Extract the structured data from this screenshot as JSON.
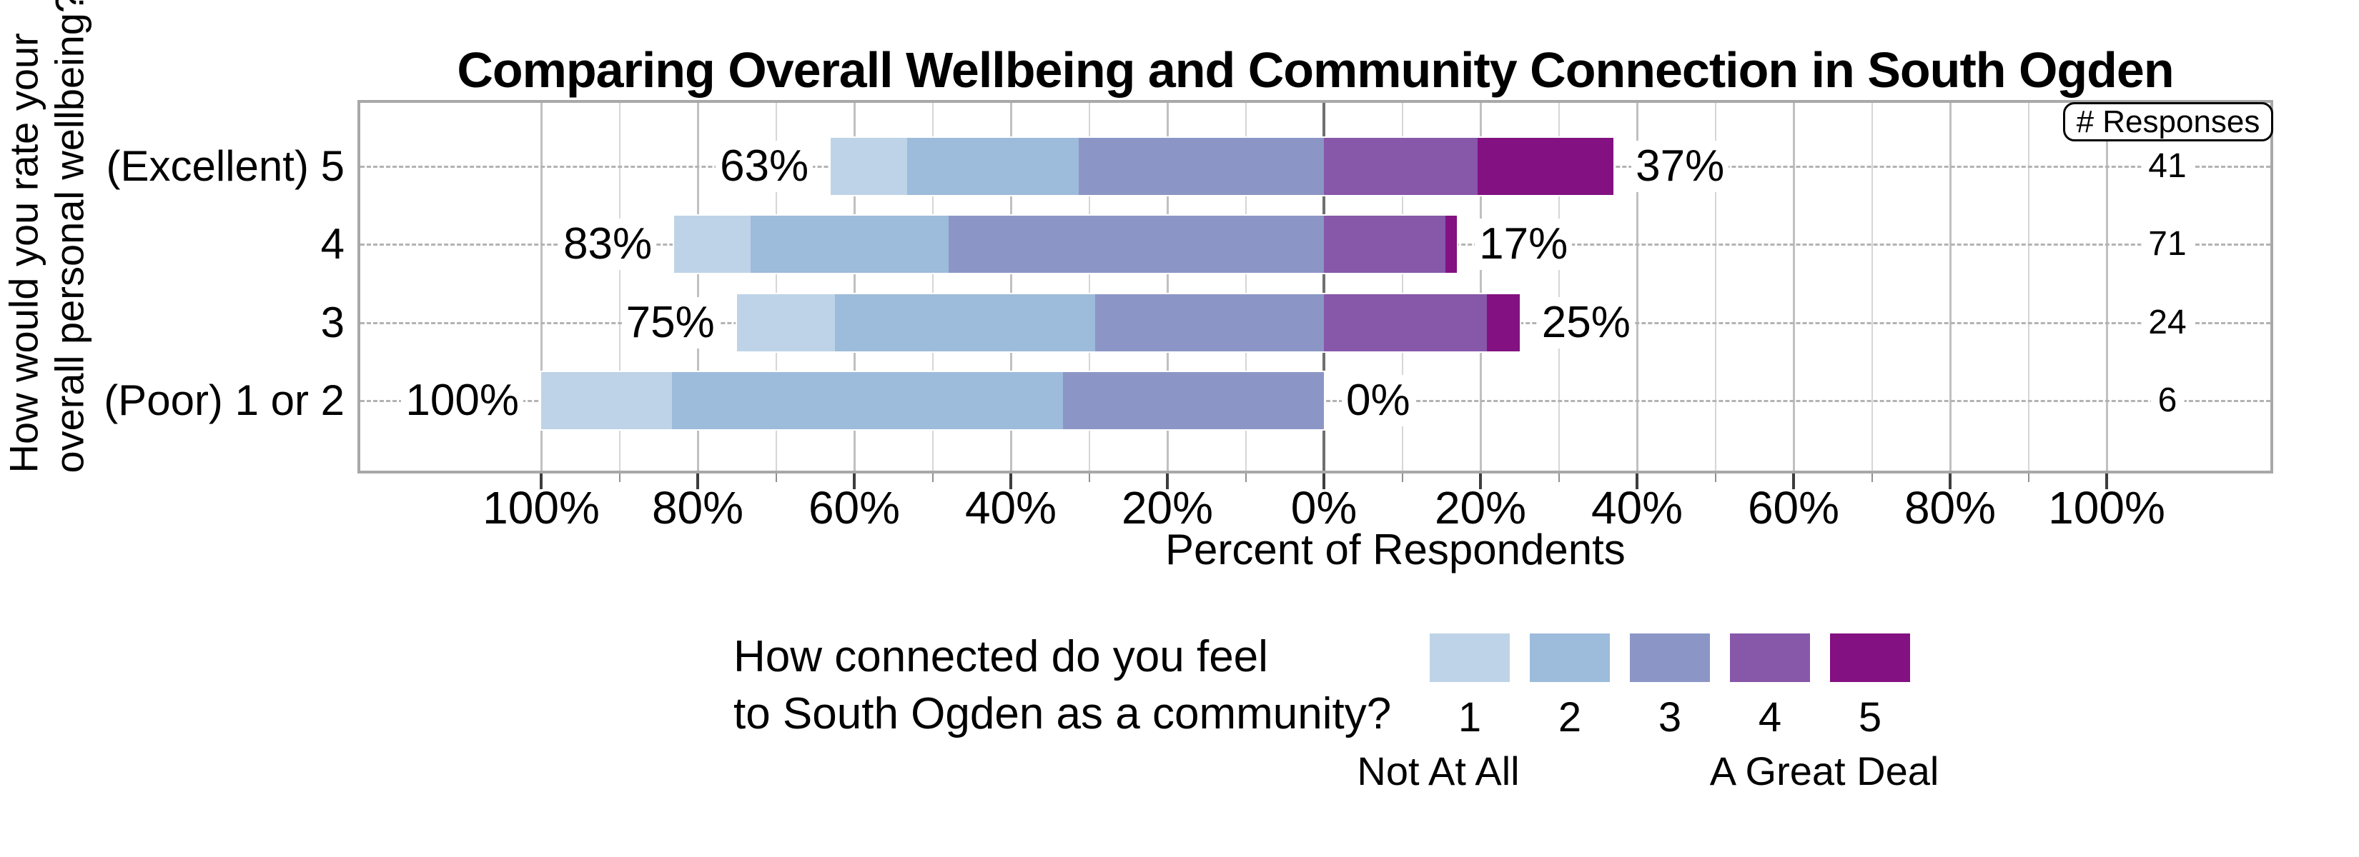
{
  "title": "Comparing Overall Wellbeing and Community Connection in South Ogden",
  "y_axis": {
    "label_lines": [
      "How would you rate your",
      "overall personal wellbeing?"
    ]
  },
  "x_axis": {
    "label": "Percent of Respondents",
    "ticks": [
      {
        "pct": -100,
        "label": "100%"
      },
      {
        "pct": -80,
        "label": "80%"
      },
      {
        "pct": -60,
        "label": "60%"
      },
      {
        "pct": -40,
        "label": "40%"
      },
      {
        "pct": -20,
        "label": "20%"
      },
      {
        "pct": 0,
        "label": "0%"
      },
      {
        "pct": 20,
        "label": "20%"
      },
      {
        "pct": 40,
        "label": "40%"
      },
      {
        "pct": 60,
        "label": "60%"
      },
      {
        "pct": 80,
        "label": "80%"
      },
      {
        "pct": 100,
        "label": "100%"
      }
    ]
  },
  "responses_header": "# Responses",
  "legend": {
    "question_lines": [
      "How connected do you feel",
      "to South Ogden as a community?"
    ],
    "levels": [
      "1",
      "2",
      "3",
      "4",
      "5"
    ],
    "low_label": "Not At All",
    "high_label": "A Great Deal"
  },
  "chart_data": {
    "type": "diverging_stacked_bar",
    "title": "Comparing Overall Wellbeing and Community Connection in South Ogden",
    "xlabel": "Percent of Respondents",
    "x_range_pct": [
      -100,
      100
    ],
    "grid": true,
    "legend_question": "How connected do you feel to South Ogden as a community?",
    "series_labels": [
      "1",
      "2",
      "3",
      "4",
      "5"
    ],
    "left_side_levels": [
      "1",
      "2",
      "3"
    ],
    "right_side_levels": [
      "4",
      "5"
    ],
    "level_colors": [
      "#bed3e7",
      "#9dbbda",
      "#8c96c6",
      "#8757a9",
      "#831181"
    ],
    "categories": [
      "(Excellent) 5",
      "4",
      "3",
      "(Poor) 1 or 2"
    ],
    "rows": [
      {
        "category": "(Excellent) 5",
        "segments_pct": [
          9.8,
          21.9,
          31.3,
          19.6,
          17.4
        ],
        "left_label": "63%",
        "right_label": "37%",
        "responses": 41
      },
      {
        "category": "4",
        "segments_pct": [
          9.8,
          25.3,
          47.9,
          15.5,
          1.5
        ],
        "left_label": "83%",
        "right_label": "17%",
        "responses": 71
      },
      {
        "category": "3",
        "segments_pct": [
          12.5,
          33.3,
          29.2,
          20.8,
          4.2
        ],
        "left_label": "75%",
        "right_label": "25%",
        "responses": 24
      },
      {
        "category": "(Poor) 1 or 2",
        "segments_pct": [
          16.7,
          50.0,
          33.3,
          0,
          0
        ],
        "left_label": "100%",
        "right_label": "0%",
        "responses": 6
      }
    ]
  }
}
